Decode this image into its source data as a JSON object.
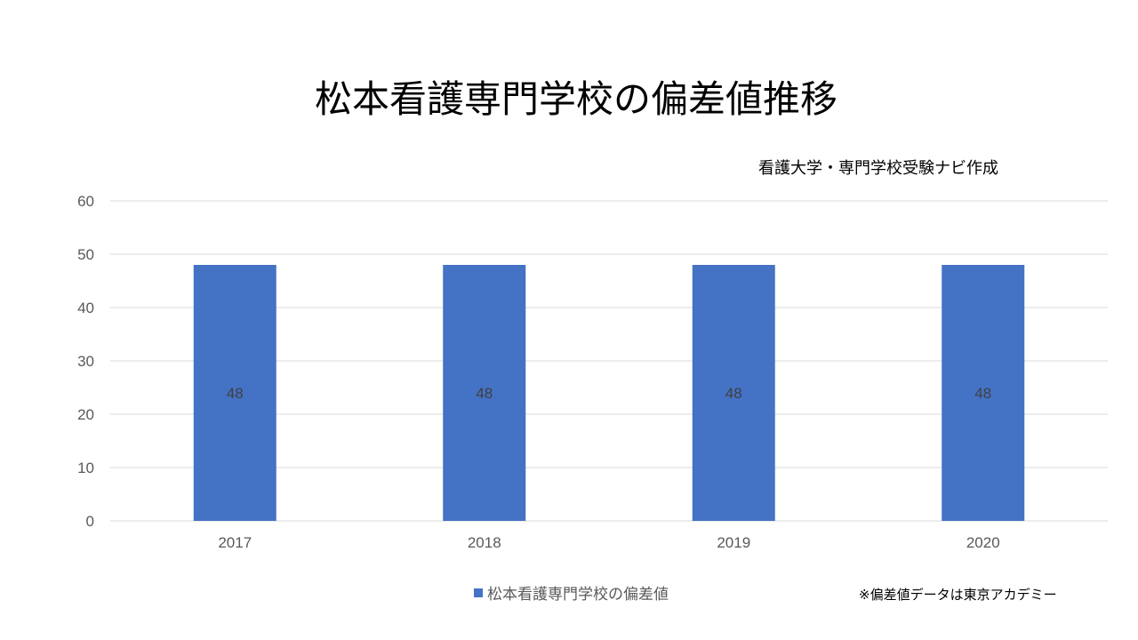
{
  "chart_data": {
    "type": "bar",
    "title": "松本看護専門学校の偏差値推移",
    "subtitle": "看護大学・専門学校受験ナビ作成",
    "note": "※偏差値データは東京アカデミー",
    "categories": [
      "2017",
      "2018",
      "2019",
      "2020"
    ],
    "series": [
      {
        "name": "松本看護専門学校の偏差値",
        "values": [
          48,
          48,
          48,
          48
        ]
      }
    ],
    "data_labels": [
      "48",
      "48",
      "48",
      "48"
    ],
    "ylim": [
      0,
      60
    ],
    "yticks": [
      "0",
      "10",
      "20",
      "30",
      "40",
      "50",
      "60"
    ],
    "grid": true,
    "legend_position": "bottom",
    "colors": {
      "bar": "#4472C4",
      "grid": "#D9D9D9",
      "tick_text": "#595959",
      "label_text": "#404040"
    }
  }
}
